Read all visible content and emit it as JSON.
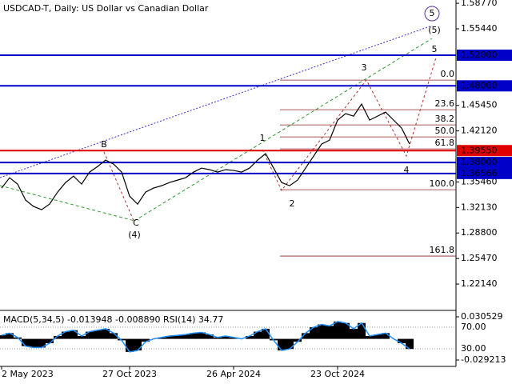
{
  "chart_data": {
    "type": "line",
    "title": "USDCAD-T, Daily:  US Dollar vs Canadian Dollar",
    "categories": [
      "2 May 2023",
      null,
      null,
      null,
      null,
      null,
      null,
      null,
      null,
      null,
      null,
      null,
      null,
      null,
      null,
      null,
      "27 Oct 2023",
      null,
      null,
      null,
      null,
      null,
      null,
      null,
      null,
      null,
      null,
      null,
      null,
      "26 Apr 2024",
      null,
      null,
      null,
      null,
      null,
      null,
      null,
      null,
      null,
      null,
      null,
      null,
      "23 Oct 2024",
      null,
      null,
      null,
      null,
      null,
      null,
      null,
      null,
      null
    ],
    "series": [
      {
        "name": "USDCAD-T",
        "color": "#000000",
        "values": [
          1.3466,
          1.3601,
          1.3518,
          1.3309,
          1.3226,
          1.3184,
          1.3257,
          1.3414,
          1.3539,
          1.3622,
          1.3518,
          1.3675,
          1.3748,
          1.3831,
          1.3779,
          1.3675,
          1.3361,
          1.3257,
          1.3414,
          1.3466,
          1.3497,
          1.3539,
          1.357,
          1.3601,
          1.3675,
          1.3727,
          1.3706,
          1.3675,
          1.3706,
          1.3696,
          1.3675,
          1.3727,
          1.3831,
          1.3915,
          1.3727,
          1.3539,
          1.3497,
          1.357,
          1.3727,
          1.3883,
          1.404,
          1.4092,
          1.4353,
          1.4437,
          1.4405,
          1.4562,
          1.4353,
          1.4405,
          1.4457,
          1.4353,
          1.4249,
          1.404
        ]
      }
    ],
    "ylim": [
      1.187,
      1.592
    ],
    "yticks": [
      {
        "value": 1.5877,
        "label": "1.58770"
      },
      {
        "value": 1.5544,
        "label": "1.55440"
      },
      {
        "value": 1.4545,
        "label": "1.45450"
      },
      {
        "value": 1.4212,
        "label": "1.42120"
      },
      {
        "value": 1.3546,
        "label": "1.35460"
      },
      {
        "value": 1.3213,
        "label": "1.32130"
      },
      {
        "value": 1.288,
        "label": "1.28800"
      },
      {
        "value": 1.2547,
        "label": "1.25470"
      },
      {
        "value": 1.2214,
        "label": "1.22140"
      }
    ],
    "levels": [
      {
        "value": 1.52,
        "label": "1.52000",
        "color": "#0000c8"
      },
      {
        "value": 1.48,
        "label": "1.48000",
        "color": "#0000c8"
      },
      {
        "value": 1.3955,
        "label": "1.39550",
        "color": "#e00000"
      },
      {
        "value": 1.38,
        "label": "1.38000",
        "color": "#0000c8"
      },
      {
        "value": 1.36566,
        "label": "1.36566",
        "color": "#0000c8"
      }
    ],
    "fibonacci": [
      {
        "label": "0.0",
        "price": 1.4875
      },
      {
        "label": "23.6",
        "price": 1.4489
      },
      {
        "label": "38.2",
        "price": 1.429
      },
      {
        "label": "50.0",
        "price": 1.4134
      },
      {
        "label": "61.8",
        "price": 1.3977
      },
      {
        "label": "100.0",
        "price": 1.3445
      },
      {
        "label": "161.8",
        "price": 1.2579
      }
    ],
    "wave_labels": [
      "1",
      "2",
      "3",
      "4",
      "5",
      "B",
      "C",
      "(4)",
      "(5)",
      "5"
    ],
    "indicator": {
      "label": "MACD(5,34,5) -0.013948 -0.008890 RSI(14) 34.77",
      "values": [
        0.005,
        0.008,
        0.002,
        -0.01,
        -0.012,
        -0.012,
        -0.006,
        0.004,
        0.01,
        0.012,
        0.004,
        0.01,
        0.012,
        0.014,
        0.008,
        -0.002,
        -0.018,
        -0.016,
        -0.004,
        0.0,
        0.002,
        0.004,
        0.005,
        0.006,
        0.008,
        0.009,
        0.006,
        0.002,
        0.004,
        0.002,
        0.0,
        0.004,
        0.01,
        0.014,
        -0.002,
        -0.016,
        -0.014,
        -0.004,
        0.008,
        0.016,
        0.02,
        0.018,
        0.024,
        0.022,
        0.014,
        0.022,
        0.004,
        0.006,
        0.008,
        0.0,
        -0.006,
        -0.014
      ],
      "ylim": [
        -0.0381,
        0.0372
      ],
      "yticks": [
        {
          "value": 0.030529,
          "label": "0.030529"
        },
        {
          "value": -0.029213,
          "label": "-0.029213"
        }
      ],
      "rsi_ylim": [
        -2.6,
        98.1
      ],
      "rsi_ticks": [
        {
          "value": 70,
          "label": "70.00"
        },
        {
          "value": 30,
          "label": "30.00"
        }
      ]
    }
  }
}
